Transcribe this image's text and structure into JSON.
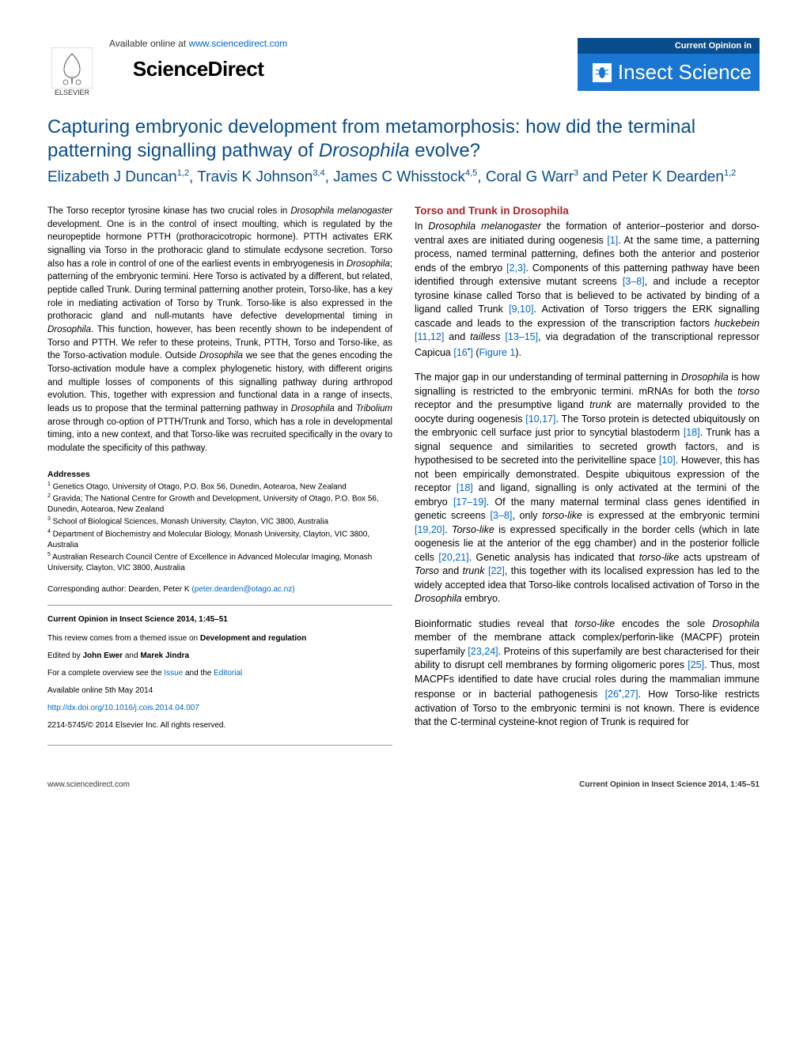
{
  "header": {
    "publisher": "ELSEVIER",
    "available_text": "Available online at ",
    "available_url": "www.sciencedirect.com",
    "brand": "ScienceDirect",
    "badge_top": "Current Opinion in",
    "badge_main": "Insect Science"
  },
  "article": {
    "title_pre": "Capturing embryonic development from metamorphosis: how did the terminal patterning signalling pathway of ",
    "title_em": "Drosophila",
    "title_post": " evolve?",
    "authors_html": "Elizabeth J Duncan<sup>1,2</sup>, Travis K Johnson<sup>3,4</sup>, James C Whisstock<sup>4,5</sup>, Coral G Warr<sup>3</sup> and Peter K Dearden<sup>1,2</sup>"
  },
  "abstract": "The Torso receptor tyrosine kinase has two crucial roles in <em>Drosophila melanogaster</em> development. One is in the control of insect moulting, which is regulated by the neuropeptide hormone PTTH (prothoracicotropic hormone). PTTH activates ERK signalling via Torso in the prothoracic gland to stimulate ecdysone secretion. Torso also has a role in control of one of the earliest events in embryogenesis in <em>Drosophila</em>; patterning of the embryonic termini. Here Torso is activated by a different, but related, peptide called Trunk. During terminal patterning another protein, Torso-like, has a key role in mediating activation of Torso by Trunk. Torso-like is also expressed in the prothoracic gland and null-mutants have defective developmental timing in <em>Drosophila</em>. This function, however, has been recently shown to be independent of Torso and PTTH. We refer to these proteins, Trunk, PTTH, Torso and Torso-like, as the Torso-activation module. Outside <em>Drosophila</em> we see that the genes encoding the Torso-activation module have a complex phylogenetic history, with different origins and multiple losses of components of this signalling pathway during arthropod evolution. This, together with expression and functional data in a range of insects, leads us to propose that the terminal patterning pathway in <em>Drosophila</em> and <em>Tribolium</em> arose through co-option of PTTH/Trunk and Torso, which has a role in developmental timing, into a new context, and that Torso-like was recruited specifically in the ovary to modulate the specificity of this pathway.",
  "addresses": {
    "heading": "Addresses",
    "items": [
      "<sup>1</sup> Genetics Otago, University of Otago, P.O. Box 56, Dunedin, Aotearoa, New Zealand",
      "<sup>2</sup> Gravida; The National Centre for Growth and Development, University of Otago, P.O. Box 56, Dunedin, Aotearoa, New Zealand",
      "<sup>3</sup> School of Biological Sciences, Monash University, Clayton, VIC 3800, Australia",
      "<sup>4</sup> Department of Biochemistry and Molecular Biology, Monash University, Clayton, VIC 3800, Australia",
      "<sup>5</sup> Australian Research Council Centre of Excellence in Advanced Molecular Imaging, Monash University, Clayton, VIC 3800, Australia"
    ]
  },
  "corresponding": {
    "label": "Corresponding author: Dearden, Peter K ",
    "email": "(peter.dearden@otago.ac.nz)"
  },
  "infobox": {
    "journal_ref": "Current Opinion in Insect Science 2014, 1:45–51",
    "themed": "This review comes from a themed issue on <b>Development and regulation</b>",
    "edited": "Edited by <b>John Ewer</b> and <b>Marek Jindra</b>",
    "overview_pre": "For a complete overview see the ",
    "overview_issue": "Issue",
    "overview_and": " and the ",
    "overview_editorial": "Editorial",
    "available": "Available online 5th May 2014",
    "doi": "http://dx.doi.org/10.1016/j.cois.2014.04.007",
    "copyright": "2214-5745/© 2014 Elsevier Inc. All rights reserved."
  },
  "section": {
    "heading": "Torso and Trunk in Drosophila",
    "p1": "In <em>Drosophila melanogaster</em> the formation of anterior–posterior and dorso-ventral axes are initiated during oogenesis <span class='cite'>[1]</span>. At the same time, a patterning process, named terminal patterning, defines both the anterior and posterior ends of the embryo <span class='cite'>[2,3]</span>. Components of this patterning pathway have been identified through extensive mutant screens <span class='cite'>[3–8]</span>, and include a receptor tyrosine kinase called Torso that is believed to be activated by binding of a ligand called Trunk <span class='cite'>[9,10]</span>. Activation of Torso triggers the ERK signalling cascade and leads to the expression of the transcription factors <em>huckebein</em> <span class='cite'>[11,12]</span> and <em>tailless</em> <span class='cite'>[13–15]</span>, via degradation of the transcriptional repressor Capicua <span class='cite'>[16<sup>•</sup>]</span> (<span class='cite'>Figure 1</span>).",
    "p2": "The major gap in our understanding of terminal patterning in <em>Drosophila</em> is how signalling is restricted to the embryonic termini. mRNAs for both the <em>torso</em> receptor and the presumptive ligand <em>trunk</em> are maternally provided to the oocyte during oogenesis <span class='cite'>[10,17]</span>. The Torso protein is detected ubiquitously on the embryonic cell surface just prior to syncytial blastoderm <span class='cite'>[18]</span>. Trunk has a signal sequence and similarities to secreted growth factors, and is hypothesised to be secreted into the perivitelline space <span class='cite'>[10]</span>. However, this has not been empirically demonstrated. Despite ubiquitous expression of the receptor <span class='cite'>[18]</span> and ligand, signalling is only activated at the termini of the embryo <span class='cite'>[17–19]</span>. Of the many maternal terminal class genes identified in genetic screens <span class='cite'>[3–8]</span>, only <em>torso-like</em> is expressed at the embryonic termini <span class='cite'>[19,20]</span>. <em>Torso-like</em> is expressed specifically in the border cells (which in late oogenesis lie at the anterior of the egg chamber) and in the posterior follicle cells <span class='cite'>[20,21]</span>. Genetic analysis has indicated that <em>torso-like</em> acts upstream of <em>Torso</em> and <em>trunk</em> <span class='cite'>[22]</span>, this together with its localised expression has led to the widely accepted idea that Torso-like controls localised activation of Torso in the <em>Drosophila</em> embryo.",
    "p3": "Bioinformatic studies reveal that <em>torso-like</em> encodes the sole <em>Drosophila</em> member of the membrane attack complex/perforin-like (MACPF) protein superfamily <span class='cite'>[23,24]</span>. Proteins of this superfamily are best characterised for their ability to disrupt cell membranes by forming oligomeric pores <span class='cite'>[25]</span>. Thus, most MACPFs identified to date have crucial roles during the mammalian immune response or in bacterial pathogenesis <span class='cite'>[26<sup>•</sup>,27]</span>. How Torso-like restricts activation of Torso to the embryonic termini is not known. There is evidence that the C-terminal cysteine-knot region of Trunk is required for"
  },
  "footer": {
    "left": "www.sciencedirect.com",
    "right": "Current Opinion in Insect Science 2014, 1:45–51"
  },
  "colors": {
    "heading_blue": "#0a4d8c",
    "section_red": "#b22222",
    "link_blue": "#0066cc",
    "badge_dark": "#0a4d8c",
    "badge_light": "#1976d2"
  }
}
